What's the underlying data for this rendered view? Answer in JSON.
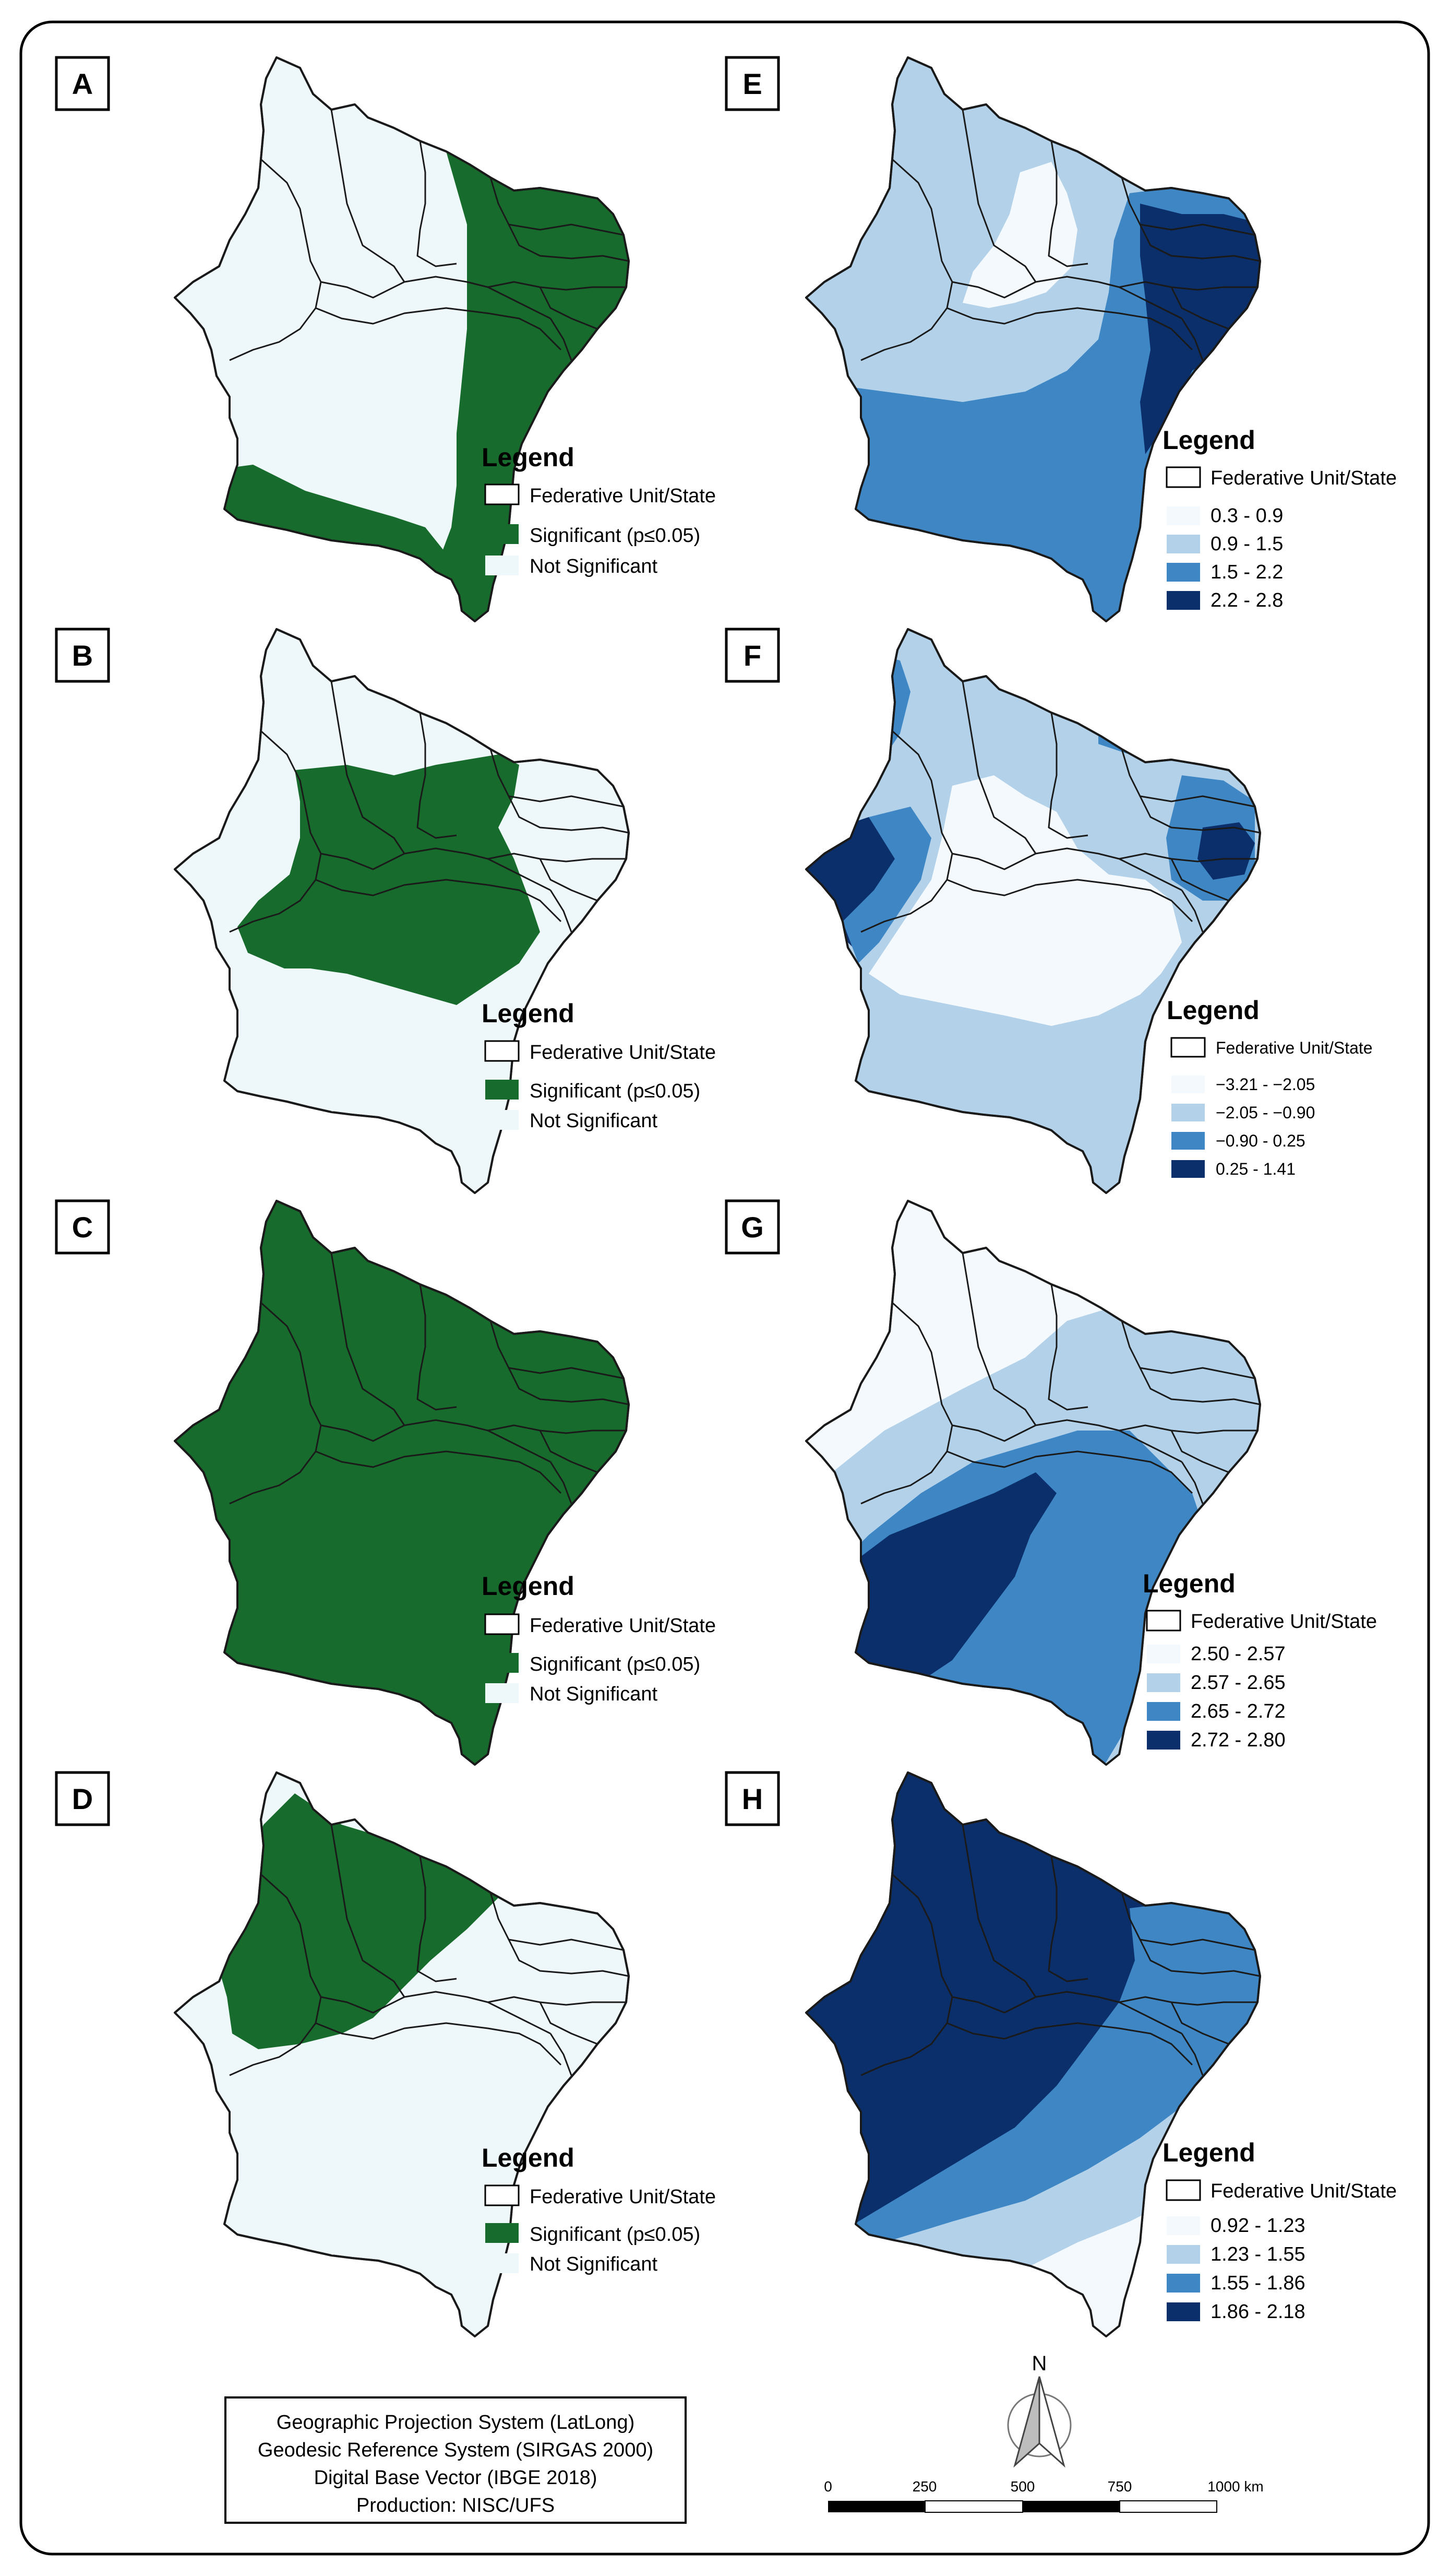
{
  "panels": {
    "A": {
      "letter": "A",
      "legend": {
        "title": "Legend",
        "items": [
          {
            "label": "Federative Unit/State",
            "color": "#ffffff"
          },
          {
            "label": "Significant (p≤0.05)",
            "color": "#176b2c"
          },
          {
            "label": "Not Significant",
            "color": "#eef7fa"
          }
        ]
      }
    },
    "B": {
      "letter": "B",
      "legend": {
        "title": "Legend",
        "items": [
          {
            "label": "Federative Unit/State",
            "color": "#ffffff"
          },
          {
            "label": "Significant (p≤0.05)",
            "color": "#176b2c"
          },
          {
            "label": "Not Significant",
            "color": "#eef7fa"
          }
        ]
      }
    },
    "C": {
      "letter": "C",
      "legend": {
        "title": "Legend",
        "items": [
          {
            "label": "Federative Unit/State",
            "color": "#ffffff"
          },
          {
            "label": "Significant (p≤0.05)",
            "color": "#176b2c"
          },
          {
            "label": "Not Significant",
            "color": "#eef7fa"
          }
        ]
      }
    },
    "D": {
      "letter": "D",
      "legend": {
        "title": "Legend",
        "items": [
          {
            "label": "Federative Unit/State",
            "color": "#ffffff"
          },
          {
            "label": "Significant (p≤0.05)",
            "color": "#176b2c"
          },
          {
            "label": "Not Significant",
            "color": "#eef7fa"
          }
        ]
      }
    },
    "E": {
      "letter": "E",
      "legend": {
        "title": "Legend",
        "items": [
          {
            "label": "Federative Unit/State",
            "color": "#ffffff"
          },
          {
            "label": "0.3 - 0.9",
            "color": "#f4f9fd"
          },
          {
            "label": "0.9 - 1.5",
            "color": "#b3d2e9"
          },
          {
            "label": "1.5 - 2.2",
            "color": "#3f86c4"
          },
          {
            "label": "2.2 - 2.8",
            "color": "#0b2f6b"
          }
        ]
      }
    },
    "F": {
      "letter": "F",
      "legend": {
        "title": "Legend",
        "items": [
          {
            "label": "Federative Unit/State",
            "color": "#ffffff"
          },
          {
            "label": "−3.21 - −2.05",
            "color": "#f4f9fd"
          },
          {
            "label": "−2.05 - −0.90",
            "color": "#b3d2e9"
          },
          {
            "label": "−0.90 - 0.25",
            "color": "#3f86c4"
          },
          {
            "label": "0.25 - 1.41",
            "color": "#0b2f6b"
          }
        ]
      }
    },
    "G": {
      "letter": "G",
      "legend": {
        "title": "Legend",
        "items": [
          {
            "label": "Federative Unit/State",
            "color": "#ffffff"
          },
          {
            "label": "2.50 - 2.57",
            "color": "#f4f9fd"
          },
          {
            "label": "2.57 - 2.65",
            "color": "#b3d2e9"
          },
          {
            "label": "2.65 - 2.72",
            "color": "#3f86c4"
          },
          {
            "label": "2.72 - 2.80",
            "color": "#0b2f6b"
          }
        ]
      }
    },
    "H": {
      "letter": "H",
      "legend": {
        "title": "Legend",
        "items": [
          {
            "label": "Federative Unit/State",
            "color": "#ffffff"
          },
          {
            "label": "0.92 - 1.23",
            "color": "#f4f9fd"
          },
          {
            "label": "1.23 - 1.55",
            "color": "#b3d2e9"
          },
          {
            "label": "1.55 - 1.86",
            "color": "#3f86c4"
          },
          {
            "label": "1.86 - 2.18",
            "color": "#0b2f6b"
          }
        ]
      }
    }
  },
  "info_box": {
    "line1": "Geographic Projection System (LatLong)",
    "line2": "Geodesic Reference System (SIRGAS 2000)",
    "line3": "Digital Base Vector (IBGE 2018)",
    "line4": "Production: NISC/UFS"
  },
  "north_arrow": {
    "label": "N"
  },
  "scale_bar": {
    "ticks": [
      "0",
      "250",
      "500",
      "750",
      "1000 km"
    ]
  },
  "colors": {
    "significant": "#176b2c",
    "not_significant": "#eef7fa",
    "class1": "#f4f9fd",
    "class2": "#b3d2e9",
    "class3": "#3f86c4",
    "class4": "#0b2f6b"
  }
}
